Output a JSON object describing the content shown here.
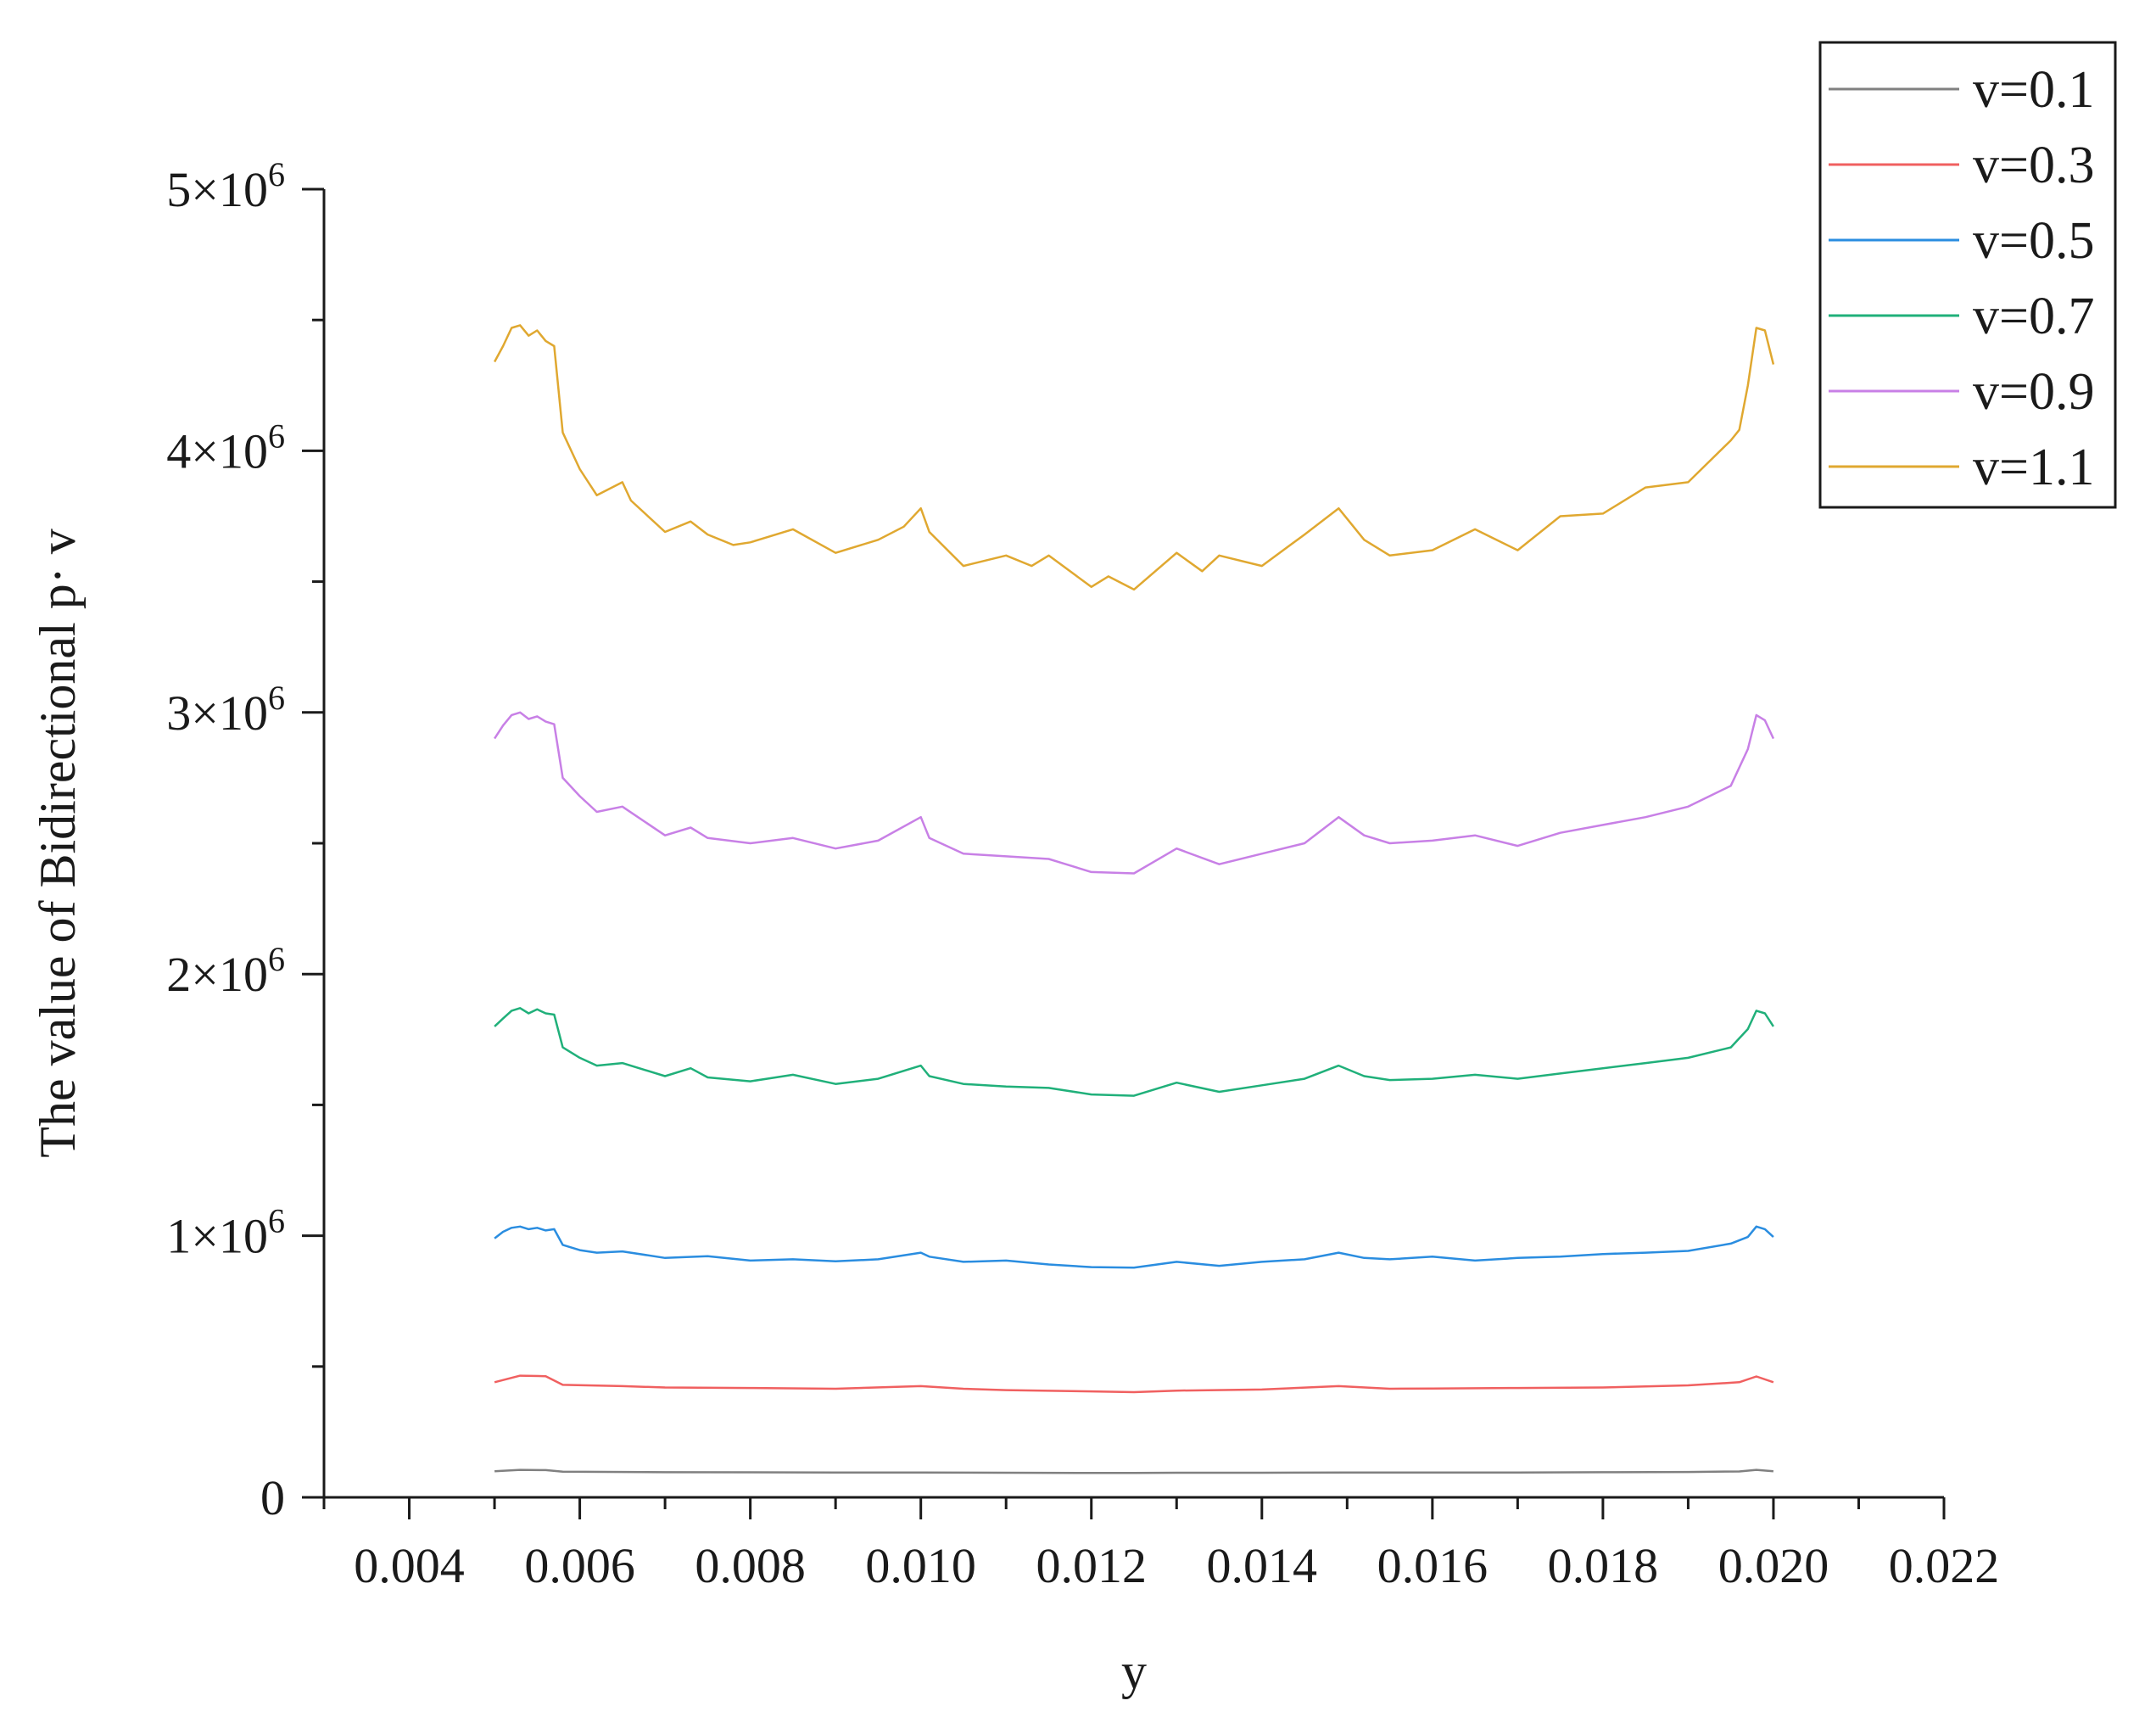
{
  "chart_data": {
    "type": "line",
    "title": "",
    "xlabel": "y",
    "ylabel": "The value of Bidirectional p· v",
    "xlim": [
      0.003,
      0.022
    ],
    "ylim": [
      0,
      5000000
    ],
    "x_ticks": [
      0.004,
      0.006,
      0.008,
      0.01,
      0.012,
      0.014,
      0.016,
      0.018,
      0.02,
      0.022
    ],
    "x_tick_labels": [
      "0.004",
      "0.006",
      "0.008",
      "0.010",
      "0.012",
      "0.014",
      "0.016",
      "0.018",
      "0.020",
      "0.022"
    ],
    "y_ticks": [
      0,
      1000000,
      2000000,
      3000000,
      4000000,
      5000000
    ],
    "y_tick_labels": [
      {
        "mant": "0",
        "exp": ""
      },
      {
        "mant": "1×10",
        "exp": "6"
      },
      {
        "mant": "2×10",
        "exp": "6"
      },
      {
        "mant": "3×10",
        "exp": "6"
      },
      {
        "mant": "4×10",
        "exp": "6"
      },
      {
        "mant": "5×10",
        "exp": "6"
      }
    ],
    "y_minor_ticks": [
      500000,
      1500000,
      2500000,
      3500000,
      4500000
    ],
    "grid": false,
    "legend_position": "top-right",
    "series": [
      {
        "name": "v=0.1",
        "color": "#808080",
        "x": [
          0.005,
          0.0053,
          0.0056,
          0.0058,
          0.007,
          0.009,
          0.01,
          0.011,
          0.012,
          0.0125,
          0.013,
          0.014,
          0.015,
          0.016,
          0.017,
          0.018,
          0.019,
          0.0196,
          0.0198,
          0.02
        ],
        "y": [
          100000,
          105000,
          104000,
          98000,
          96000,
          95000,
          95000,
          94000,
          93000,
          93000,
          94000,
          94000,
          95000,
          95000,
          95000,
          96000,
          97000,
          99000,
          105000,
          100000
        ]
      },
      {
        "name": "v=0.3",
        "color": "#f06060",
        "x": [
          0.005,
          0.0053,
          0.0056,
          0.0058,
          0.0065,
          0.007,
          0.008,
          0.009,
          0.01,
          0.0105,
          0.011,
          0.012,
          0.0125,
          0.013,
          0.014,
          0.0149,
          0.0155,
          0.016,
          0.017,
          0.018,
          0.019,
          0.0196,
          0.0198,
          0.02
        ],
        "y": [
          440000,
          465000,
          463000,
          430000,
          425000,
          420000,
          418000,
          415000,
          425000,
          415000,
          410000,
          405000,
          402000,
          408000,
          412000,
          425000,
          415000,
          416000,
          418000,
          420000,
          428000,
          440000,
          462000,
          440000
        ]
      },
      {
        "name": "v=0.5",
        "color": "#2a8de0",
        "x": [
          0.005,
          0.0051,
          0.0052,
          0.0053,
          0.0054,
          0.0055,
          0.0056,
          0.0057,
          0.0058,
          0.006,
          0.0062,
          0.0065,
          0.007,
          0.0075,
          0.008,
          0.0085,
          0.009,
          0.0095,
          0.01,
          0.0101,
          0.0105,
          0.011,
          0.0115,
          0.012,
          0.0125,
          0.013,
          0.0135,
          0.014,
          0.0145,
          0.0149,
          0.0152,
          0.0155,
          0.016,
          0.0165,
          0.017,
          0.0175,
          0.018,
          0.0185,
          0.019,
          0.0195,
          0.0197,
          0.0198,
          0.0199,
          0.02
        ],
        "y": [
          990000,
          1015000,
          1030000,
          1035000,
          1025000,
          1030000,
          1020000,
          1025000,
          965000,
          945000,
          935000,
          940000,
          915000,
          922000,
          905000,
          910000,
          902000,
          910000,
          935000,
          920000,
          900000,
          905000,
          890000,
          880000,
          878000,
          900000,
          885000,
          900000,
          910000,
          935000,
          915000,
          910000,
          920000,
          905000,
          915000,
          920000,
          930000,
          935000,
          942000,
          970000,
          995000,
          1035000,
          1025000,
          995000
        ]
      },
      {
        "name": "v=0.7",
        "color": "#20b07a",
        "x": [
          0.005,
          0.0051,
          0.0052,
          0.0053,
          0.0054,
          0.0055,
          0.0056,
          0.0057,
          0.0058,
          0.006,
          0.0062,
          0.0065,
          0.007,
          0.0073,
          0.0075,
          0.008,
          0.0085,
          0.009,
          0.0095,
          0.01,
          0.0101,
          0.0105,
          0.011,
          0.0115,
          0.012,
          0.0125,
          0.013,
          0.0135,
          0.014,
          0.0145,
          0.0149,
          0.0152,
          0.0155,
          0.016,
          0.0165,
          0.017,
          0.0175,
          0.018,
          0.0185,
          0.019,
          0.0195,
          0.0197,
          0.0198,
          0.0199,
          0.02
        ],
        "y": [
          1800000,
          1830000,
          1860000,
          1870000,
          1850000,
          1865000,
          1850000,
          1845000,
          1720000,
          1680000,
          1650000,
          1660000,
          1610000,
          1640000,
          1605000,
          1590000,
          1615000,
          1580000,
          1600000,
          1650000,
          1610000,
          1580000,
          1570000,
          1565000,
          1540000,
          1535000,
          1585000,
          1550000,
          1575000,
          1600000,
          1650000,
          1610000,
          1595000,
          1600000,
          1615000,
          1600000,
          1620000,
          1640000,
          1660000,
          1680000,
          1720000,
          1790000,
          1860000,
          1850000,
          1800000
        ]
      },
      {
        "name": "v=0.9",
        "color": "#c880e6",
        "x": [
          0.005,
          0.0051,
          0.0052,
          0.0053,
          0.0054,
          0.0055,
          0.0056,
          0.0057,
          0.0058,
          0.006,
          0.0062,
          0.0065,
          0.007,
          0.0073,
          0.0075,
          0.008,
          0.0085,
          0.009,
          0.0095,
          0.01,
          0.0101,
          0.0105,
          0.011,
          0.0115,
          0.012,
          0.0125,
          0.013,
          0.0135,
          0.014,
          0.0145,
          0.0149,
          0.0152,
          0.0155,
          0.016,
          0.0165,
          0.017,
          0.0175,
          0.018,
          0.0185,
          0.019,
          0.0195,
          0.0197,
          0.0198,
          0.0199,
          0.02
        ],
        "y": [
          2900000,
          2950000,
          2990000,
          3000000,
          2975000,
          2985000,
          2965000,
          2955000,
          2750000,
          2680000,
          2620000,
          2640000,
          2530000,
          2560000,
          2520000,
          2500000,
          2520000,
          2480000,
          2510000,
          2600000,
          2520000,
          2460000,
          2450000,
          2440000,
          2390000,
          2385000,
          2480000,
          2420000,
          2460000,
          2500000,
          2600000,
          2530000,
          2500000,
          2510000,
          2530000,
          2490000,
          2540000,
          2570000,
          2600000,
          2640000,
          2720000,
          2860000,
          2990000,
          2970000,
          2900000
        ]
      },
      {
        "name": "v=1.1",
        "color": "#e0a830",
        "x": [
          0.005,
          0.0051,
          0.0052,
          0.0053,
          0.0054,
          0.0055,
          0.0056,
          0.0057,
          0.0058,
          0.006,
          0.0062,
          0.0065,
          0.0066,
          0.007,
          0.0073,
          0.0075,
          0.0078,
          0.008,
          0.0085,
          0.009,
          0.0095,
          0.0098,
          0.01,
          0.0101,
          0.0105,
          0.011,
          0.0113,
          0.0115,
          0.012,
          0.0122,
          0.0125,
          0.013,
          0.0133,
          0.0135,
          0.014,
          0.0145,
          0.0149,
          0.0152,
          0.0155,
          0.016,
          0.0165,
          0.017,
          0.0175,
          0.018,
          0.0185,
          0.019,
          0.0195,
          0.0196,
          0.0197,
          0.0198,
          0.0199,
          0.02
        ],
        "y": [
          4340000,
          4400000,
          4470000,
          4480000,
          4440000,
          4460000,
          4420000,
          4400000,
          4070000,
          3930000,
          3830000,
          3880000,
          3810000,
          3690000,
          3730000,
          3680000,
          3640000,
          3650000,
          3700000,
          3610000,
          3660000,
          3710000,
          3780000,
          3690000,
          3560000,
          3600000,
          3560000,
          3600000,
          3480000,
          3520000,
          3470000,
          3610000,
          3540000,
          3600000,
          3560000,
          3680000,
          3780000,
          3660000,
          3600000,
          3620000,
          3700000,
          3620000,
          3750000,
          3760000,
          3860000,
          3880000,
          4040000,
          4080000,
          4250000,
          4470000,
          4460000,
          4330000
        ]
      }
    ]
  }
}
